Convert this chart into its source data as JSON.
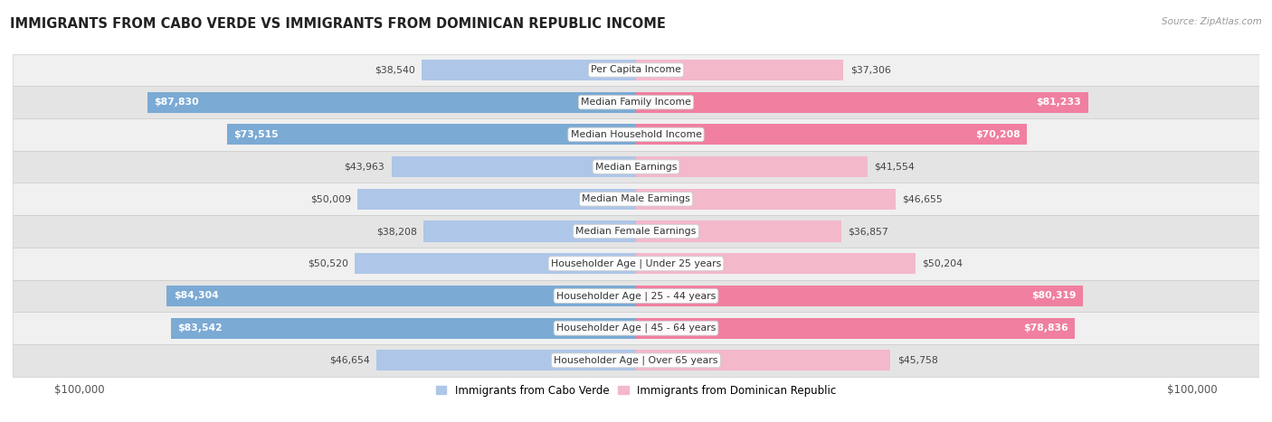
{
  "title": "IMMIGRANTS FROM CABO VERDE VS IMMIGRANTS FROM DOMINICAN REPUBLIC INCOME",
  "source": "Source: ZipAtlas.com",
  "categories": [
    "Per Capita Income",
    "Median Family Income",
    "Median Household Income",
    "Median Earnings",
    "Median Male Earnings",
    "Median Female Earnings",
    "Householder Age | Under 25 years",
    "Householder Age | 25 - 44 years",
    "Householder Age | 45 - 64 years",
    "Householder Age | Over 65 years"
  ],
  "cabo_verde": [
    38540,
    87830,
    73515,
    43963,
    50009,
    38208,
    50520,
    84304,
    83542,
    46654
  ],
  "dominican": [
    37306,
    81233,
    70208,
    41554,
    46655,
    36857,
    50204,
    80319,
    78836,
    45758
  ],
  "cabo_verde_color_light": "#aec6e8",
  "cabo_verde_color_dark": "#7baad4",
  "dominican_color_light": "#f4b8cb",
  "dominican_color_dark": "#f07fa0",
  "row_bg_odd": "#f0f0f0",
  "row_bg_even": "#e4e4e4",
  "max_value": 100000,
  "legend_cabo": "Immigrants from Cabo Verde",
  "legend_dominican": "Immigrants from Dominican Republic",
  "threshold_dark": 60000
}
